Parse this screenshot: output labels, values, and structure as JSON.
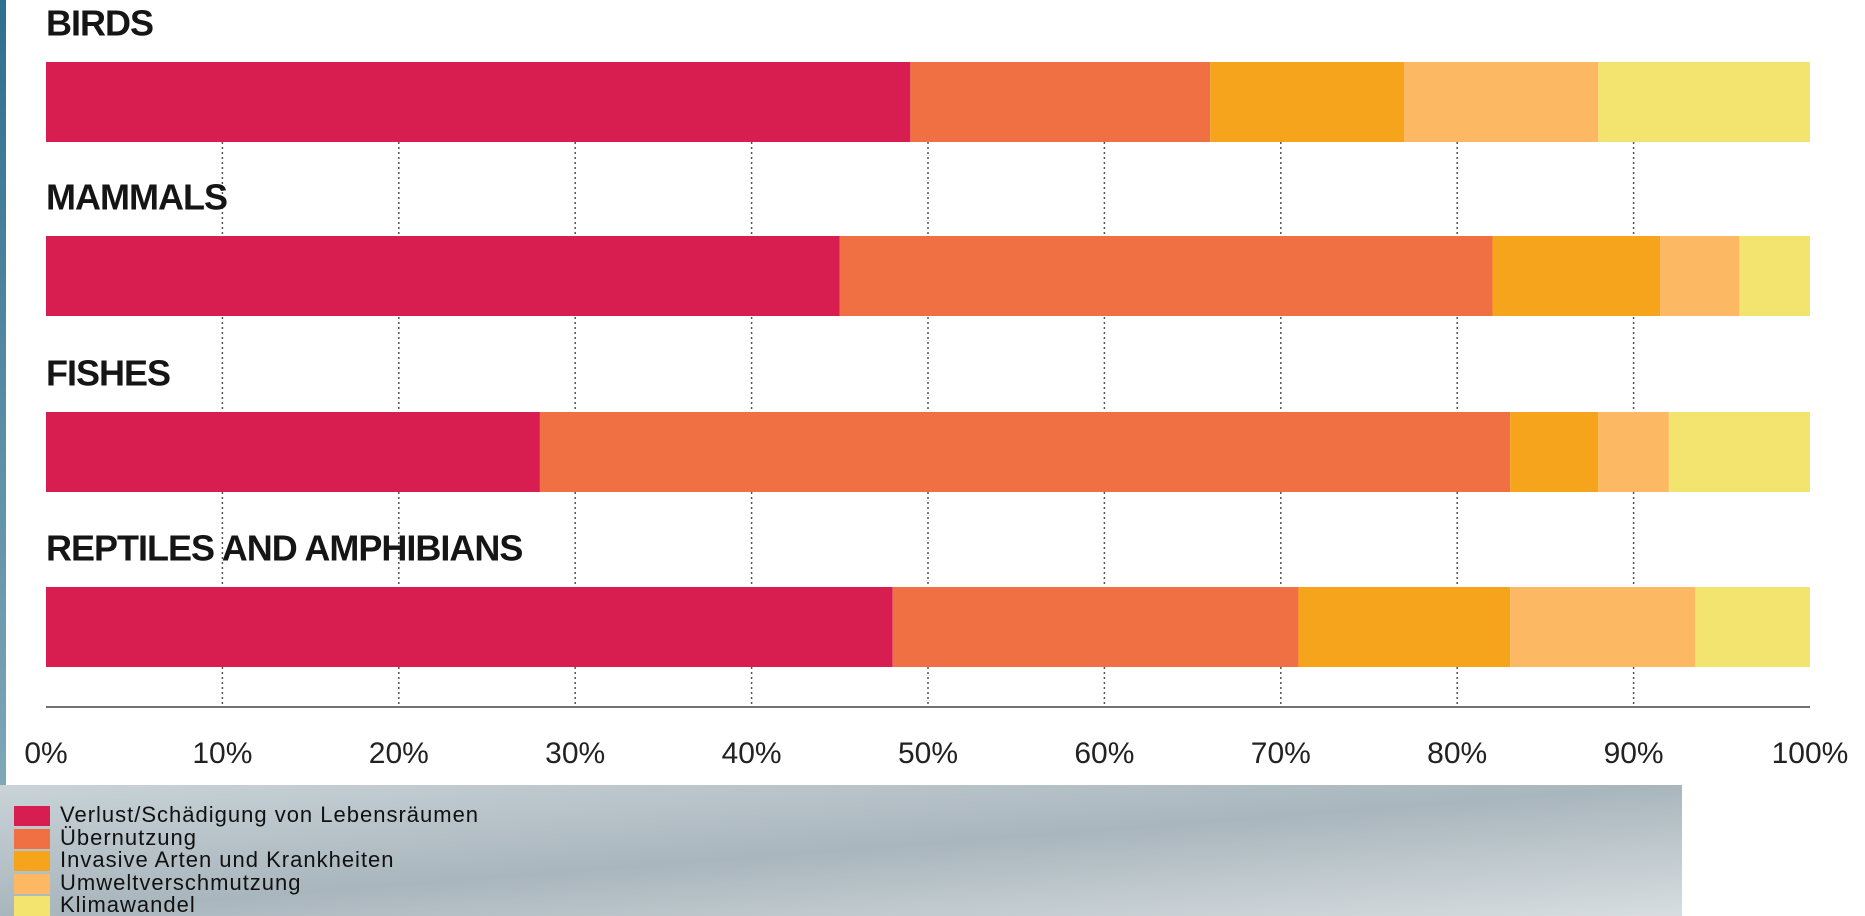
{
  "chart_data": {
    "type": "stacked-bar-horizontal",
    "categories": [
      "BIRDS",
      "MAMMALS",
      "FISHES",
      "REPTILES AND AMPHIBIANS"
    ],
    "series": [
      {
        "name": "Verlust/Schädigung von Lebensräumen",
        "color": "#d81e50",
        "values": [
          49,
          45,
          28,
          48
        ]
      },
      {
        "name": "Übernutzung",
        "color": "#f07043",
        "values": [
          17,
          37,
          55,
          23
        ]
      },
      {
        "name": "Invasive Arten und Krankheiten",
        "color": "#f7a41d",
        "values": [
          11,
          9.5,
          5,
          12
        ]
      },
      {
        "name": "Umweltverschmutzung",
        "color": "#fdb863",
        "values": [
          11,
          4.5,
          4,
          10.5
        ]
      },
      {
        "name": "Klimawandel",
        "color": "#f2e46f",
        "values": [
          12,
          4,
          8,
          6.5
        ]
      }
    ],
    "xlim": [
      0,
      100
    ],
    "xticks": [
      {
        "value": 0,
        "label": "0%"
      },
      {
        "value": 10,
        "label": "10%"
      },
      {
        "value": 20,
        "label": "20%"
      },
      {
        "value": 30,
        "label": "30%"
      },
      {
        "value": 40,
        "label": "40%"
      },
      {
        "value": 50,
        "label": "50%"
      },
      {
        "value": 60,
        "label": "60%"
      },
      {
        "value": 70,
        "label": "70%"
      },
      {
        "value": 80,
        "label": "80%"
      },
      {
        "value": 90,
        "label": "90%"
      },
      {
        "value": 100,
        "label": "100%"
      }
    ],
    "grid": true
  }
}
